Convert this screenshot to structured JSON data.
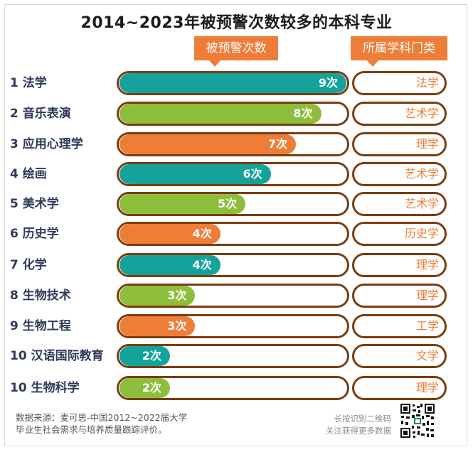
{
  "chart_data": {
    "type": "bar",
    "orientation": "horizontal",
    "title": "2014~2023年被预警次数较多的本科专业",
    "value_header": "被预警次数",
    "category_header": "所属学科门类",
    "value_suffix": "次",
    "xlim": [
      0,
      9
    ],
    "rows": [
      {
        "rank": "1",
        "name": "法学",
        "value": 9,
        "category": "法学",
        "color": "#14a39a"
      },
      {
        "rank": "2",
        "name": "音乐表演",
        "value": 8,
        "category": "艺术学",
        "color": "#8dbe3b"
      },
      {
        "rank": "3",
        "name": "应用心理学",
        "value": 7,
        "category": "理学",
        "color": "#ee7d37"
      },
      {
        "rank": "4",
        "name": "绘画",
        "value": 6,
        "category": "艺术学",
        "color": "#14a39a"
      },
      {
        "rank": "5",
        "name": "美术学",
        "value": 5,
        "category": "艺术学",
        "color": "#8dbe3b"
      },
      {
        "rank": "6",
        "name": "历史学",
        "value": 4,
        "category": "历史学",
        "color": "#ee7d37"
      },
      {
        "rank": "7",
        "name": "化学",
        "value": 4,
        "category": "理学",
        "color": "#14a39a"
      },
      {
        "rank": "8",
        "name": "生物技术",
        "value": 3,
        "category": "理学",
        "color": "#8dbe3b"
      },
      {
        "rank": "9",
        "name": "生物工程",
        "value": 3,
        "category": "工学",
        "color": "#ee7d37"
      },
      {
        "rank": "10",
        "name": "汉语国际教育",
        "value": 2,
        "category": "文学",
        "color": "#14a39a"
      },
      {
        "rank": "10",
        "name": "生物科学",
        "value": 2,
        "category": "理学",
        "color": "#8dbe3b"
      }
    ]
  },
  "footer": {
    "source_line1": "数据来源：麦可思-中国2012~2022届大学",
    "source_line2": "毕业生社会需求与培养质量跟踪评价。",
    "qr_line1": "长按识别二维码",
    "qr_line2": "关注获得更多数据"
  }
}
